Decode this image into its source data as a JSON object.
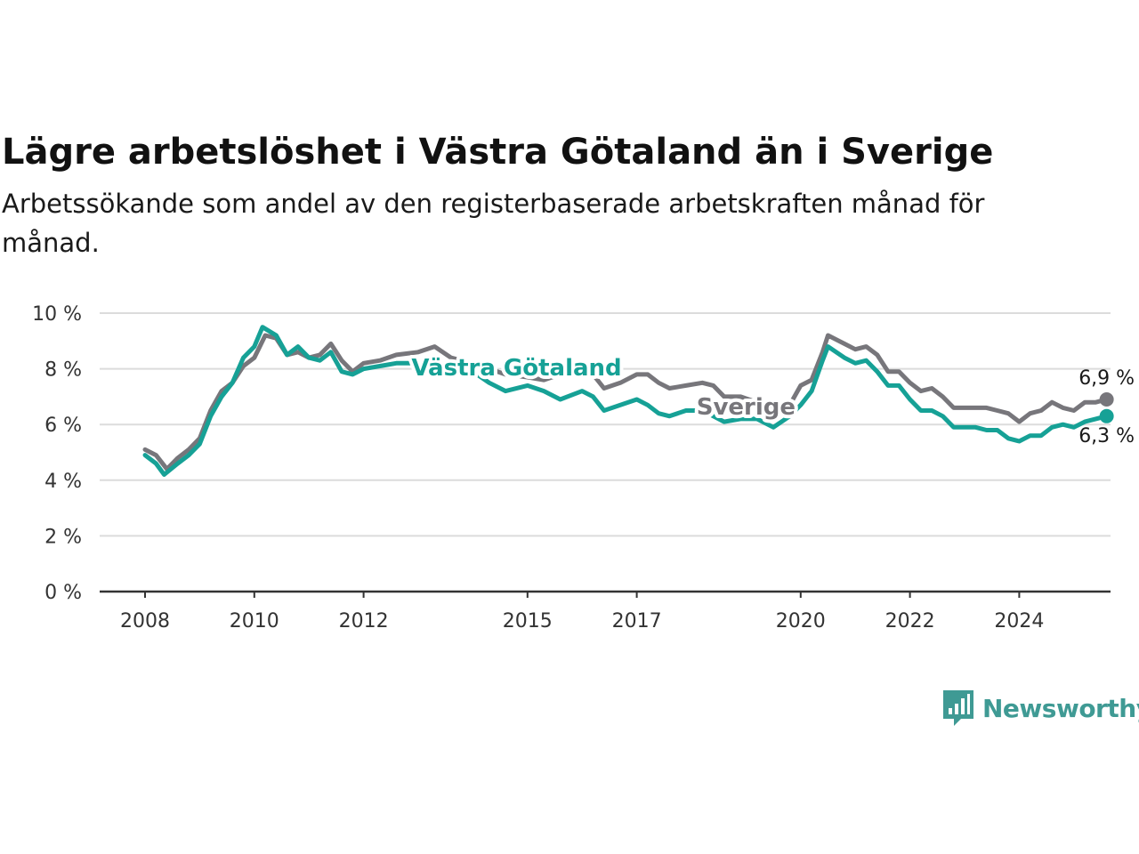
{
  "title": "Lägre arbetslöshet i Västra Götaland än i Sverige",
  "subtitle": "Arbetssökande som andel av den registerbaserade arbetskraften månad för månad.",
  "brand": {
    "name": "Newsworthy",
    "icon": "bar-chart-speech-bubble-icon",
    "color": "#3f9a94"
  },
  "colors": {
    "sverige": "#77767b",
    "vastra": "#16a196",
    "grid": "#dcdcdc",
    "axis": "#333333"
  },
  "chart_data": {
    "type": "line",
    "ylim": [
      0,
      10
    ],
    "xlim": [
      2008,
      2025.9
    ],
    "yticks": [
      0,
      2,
      4,
      6,
      8,
      10
    ],
    "ytick_labels": [
      "0 %",
      "2 %",
      "4 %",
      "6 %",
      "8 %",
      "10 %"
    ],
    "xticks": [
      2008,
      2010,
      2012,
      2015,
      2017,
      2020,
      2022,
      2024
    ],
    "xtick_labels": [
      "2008",
      "2010",
      "2012",
      "2015",
      "2017",
      "2020",
      "2022",
      "2024"
    ],
    "grid": true,
    "legend": "inline labels",
    "series": [
      {
        "name": "Sverige",
        "key": "sverige",
        "end_label": "6,9 %",
        "points": [
          [
            2008.0,
            5.1
          ],
          [
            2008.2,
            4.9
          ],
          [
            2008.4,
            4.4
          ],
          [
            2008.6,
            4.8
          ],
          [
            2008.8,
            5.1
          ],
          [
            2009.0,
            5.5
          ],
          [
            2009.2,
            6.5
          ],
          [
            2009.4,
            7.2
          ],
          [
            2009.6,
            7.5
          ],
          [
            2009.8,
            8.1
          ],
          [
            2010.0,
            8.4
          ],
          [
            2010.2,
            9.2
          ],
          [
            2010.4,
            9.1
          ],
          [
            2010.6,
            8.5
          ],
          [
            2010.8,
            8.6
          ],
          [
            2011.0,
            8.4
          ],
          [
            2011.2,
            8.5
          ],
          [
            2011.4,
            8.9
          ],
          [
            2011.6,
            8.3
          ],
          [
            2011.8,
            7.9
          ],
          [
            2012.0,
            8.2
          ],
          [
            2012.3,
            8.3
          ],
          [
            2012.6,
            8.5
          ],
          [
            2013.0,
            8.6
          ],
          [
            2013.3,
            8.8
          ],
          [
            2013.6,
            8.4
          ],
          [
            2014.0,
            8.2
          ],
          [
            2014.3,
            8.0
          ],
          [
            2014.6,
            7.8
          ],
          [
            2015.0,
            7.7
          ],
          [
            2015.3,
            7.6
          ],
          [
            2015.6,
            7.8
          ],
          [
            2016.0,
            8.0
          ],
          [
            2016.2,
            7.8
          ],
          [
            2016.4,
            7.3
          ],
          [
            2016.7,
            7.5
          ],
          [
            2017.0,
            7.8
          ],
          [
            2017.2,
            7.8
          ],
          [
            2017.4,
            7.5
          ],
          [
            2017.6,
            7.3
          ],
          [
            2017.9,
            7.4
          ],
          [
            2018.2,
            7.5
          ],
          [
            2018.4,
            7.4
          ],
          [
            2018.6,
            7.0
          ],
          [
            2018.9,
            7.0
          ],
          [
            2019.2,
            6.8
          ],
          [
            2019.5,
            6.6
          ],
          [
            2019.8,
            6.7
          ],
          [
            2020.0,
            7.4
          ],
          [
            2020.2,
            7.6
          ],
          [
            2020.4,
            8.6
          ],
          [
            2020.5,
            9.2
          ],
          [
            2020.8,
            8.9
          ],
          [
            2021.0,
            8.7
          ],
          [
            2021.2,
            8.8
          ],
          [
            2021.4,
            8.5
          ],
          [
            2021.6,
            7.9
          ],
          [
            2021.8,
            7.9
          ],
          [
            2022.0,
            7.5
          ],
          [
            2022.2,
            7.2
          ],
          [
            2022.4,
            7.3
          ],
          [
            2022.6,
            7.0
          ],
          [
            2022.8,
            6.6
          ],
          [
            2023.0,
            6.6
          ],
          [
            2023.2,
            6.6
          ],
          [
            2023.4,
            6.6
          ],
          [
            2023.6,
            6.5
          ],
          [
            2023.8,
            6.4
          ],
          [
            2024.0,
            6.1
          ],
          [
            2024.2,
            6.4
          ],
          [
            2024.4,
            6.5
          ],
          [
            2024.6,
            6.8
          ],
          [
            2024.8,
            6.6
          ],
          [
            2025.0,
            6.5
          ],
          [
            2025.2,
            6.8
          ],
          [
            2025.4,
            6.8
          ],
          [
            2025.6,
            6.9
          ]
        ]
      },
      {
        "name": "Västra Götaland",
        "key": "vastra",
        "end_label": "6,3 %",
        "points": [
          [
            2008.0,
            4.9
          ],
          [
            2008.2,
            4.6
          ],
          [
            2008.35,
            4.2
          ],
          [
            2008.6,
            4.6
          ],
          [
            2008.8,
            4.9
          ],
          [
            2009.0,
            5.3
          ],
          [
            2009.2,
            6.3
          ],
          [
            2009.4,
            7.0
          ],
          [
            2009.6,
            7.5
          ],
          [
            2009.8,
            8.4
          ],
          [
            2010.0,
            8.8
          ],
          [
            2010.15,
            9.5
          ],
          [
            2010.4,
            9.2
          ],
          [
            2010.6,
            8.5
          ],
          [
            2010.8,
            8.8
          ],
          [
            2011.0,
            8.4
          ],
          [
            2011.2,
            8.3
          ],
          [
            2011.4,
            8.6
          ],
          [
            2011.6,
            7.9
          ],
          [
            2011.8,
            7.8
          ],
          [
            2012.0,
            8.0
          ],
          [
            2012.3,
            8.1
          ],
          [
            2012.6,
            8.2
          ],
          [
            2013.0,
            8.2
          ],
          [
            2013.3,
            8.3
          ],
          [
            2013.6,
            7.9
          ],
          [
            2014.0,
            7.9
          ],
          [
            2014.3,
            7.5
          ],
          [
            2014.6,
            7.2
          ],
          [
            2015.0,
            7.4
          ],
          [
            2015.3,
            7.2
          ],
          [
            2015.6,
            6.9
          ],
          [
            2016.0,
            7.2
          ],
          [
            2016.2,
            7.0
          ],
          [
            2016.4,
            6.5
          ],
          [
            2016.7,
            6.7
          ],
          [
            2017.0,
            6.9
          ],
          [
            2017.2,
            6.7
          ],
          [
            2017.4,
            6.4
          ],
          [
            2017.6,
            6.3
          ],
          [
            2017.9,
            6.5
          ],
          [
            2018.2,
            6.5
          ],
          [
            2018.4,
            6.3
          ],
          [
            2018.6,
            6.1
          ],
          [
            2018.9,
            6.2
          ],
          [
            2019.2,
            6.2
          ],
          [
            2019.5,
            5.9
          ],
          [
            2019.8,
            6.3
          ],
          [
            2020.0,
            6.7
          ],
          [
            2020.2,
            7.2
          ],
          [
            2020.4,
            8.3
          ],
          [
            2020.5,
            8.8
          ],
          [
            2020.8,
            8.4
          ],
          [
            2021.0,
            8.2
          ],
          [
            2021.2,
            8.3
          ],
          [
            2021.4,
            7.9
          ],
          [
            2021.6,
            7.4
          ],
          [
            2021.8,
            7.4
          ],
          [
            2022.0,
            6.9
          ],
          [
            2022.2,
            6.5
          ],
          [
            2022.4,
            6.5
          ],
          [
            2022.6,
            6.3
          ],
          [
            2022.8,
            5.9
          ],
          [
            2023.0,
            5.9
          ],
          [
            2023.2,
            5.9
          ],
          [
            2023.4,
            5.8
          ],
          [
            2023.6,
            5.8
          ],
          [
            2023.8,
            5.5
          ],
          [
            2024.0,
            5.4
          ],
          [
            2024.2,
            5.6
          ],
          [
            2024.4,
            5.6
          ],
          [
            2024.6,
            5.9
          ],
          [
            2024.8,
            6.0
          ],
          [
            2025.0,
            5.9
          ],
          [
            2025.2,
            6.1
          ],
          [
            2025.4,
            6.2
          ],
          [
            2025.6,
            6.3
          ]
        ]
      }
    ]
  }
}
